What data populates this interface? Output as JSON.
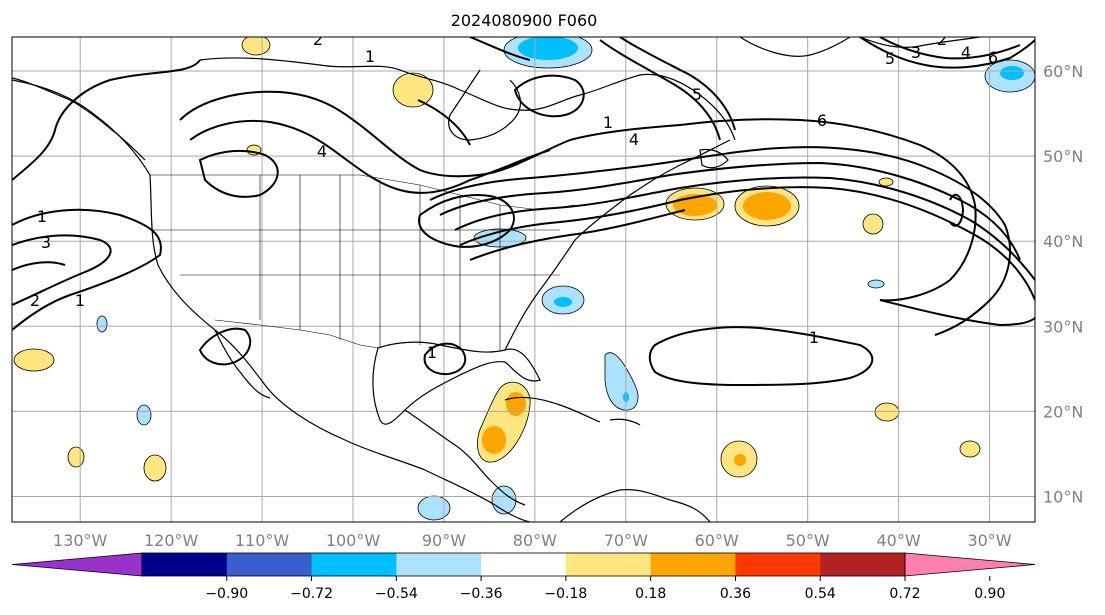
{
  "title": "2024080900 F060",
  "map": {
    "lon_range": [
      -137.5,
      -25
    ],
    "lat_range": [
      7,
      64
    ],
    "lon_ticks": [
      {
        "value": -130,
        "label": "130°W"
      },
      {
        "value": -120,
        "label": "120°W"
      },
      {
        "value": -110,
        "label": "110°W"
      },
      {
        "value": -100,
        "label": "100°W"
      },
      {
        "value": -90,
        "label": "90°W"
      },
      {
        "value": -80,
        "label": "80°W"
      },
      {
        "value": -70,
        "label": "70°W"
      },
      {
        "value": -60,
        "label": "60°W"
      },
      {
        "value": -50,
        "label": "50°W"
      },
      {
        "value": -40,
        "label": "40°W"
      },
      {
        "value": -30,
        "label": "30°W"
      }
    ],
    "lat_ticks": [
      {
        "value": 60,
        "label": "60°N"
      },
      {
        "value": 50,
        "label": "50°N"
      },
      {
        "value": 40,
        "label": "40°N"
      },
      {
        "value": 30,
        "label": "30°N"
      },
      {
        "value": 20,
        "label": "20°N"
      },
      {
        "value": 10,
        "label": "10°N"
      }
    ],
    "gridlines": true,
    "contour_labels": [
      "1",
      "3",
      "2",
      "1",
      "4",
      "1",
      "2",
      "1",
      "1",
      "5",
      "6",
      "5",
      "3",
      "2",
      "4",
      "6",
      "1",
      "4"
    ]
  },
  "colorbar": {
    "ticks": [
      "−0.90",
      "−0.72",
      "−0.54",
      "−0.36",
      "−0.18",
      "0.18",
      "0.36",
      "0.54",
      "0.72",
      "0.90"
    ],
    "under_color": "#9932cc",
    "over_color": "#ff7fb0",
    "colors": [
      "#9932cc",
      "#00008b",
      "#3a5fcd",
      "#00bfff",
      "#ade2ff",
      "#ffffff",
      "#ffe680",
      "#ffa500",
      "#ff3800",
      "#b22222",
      "#ff7fb0"
    ]
  }
}
